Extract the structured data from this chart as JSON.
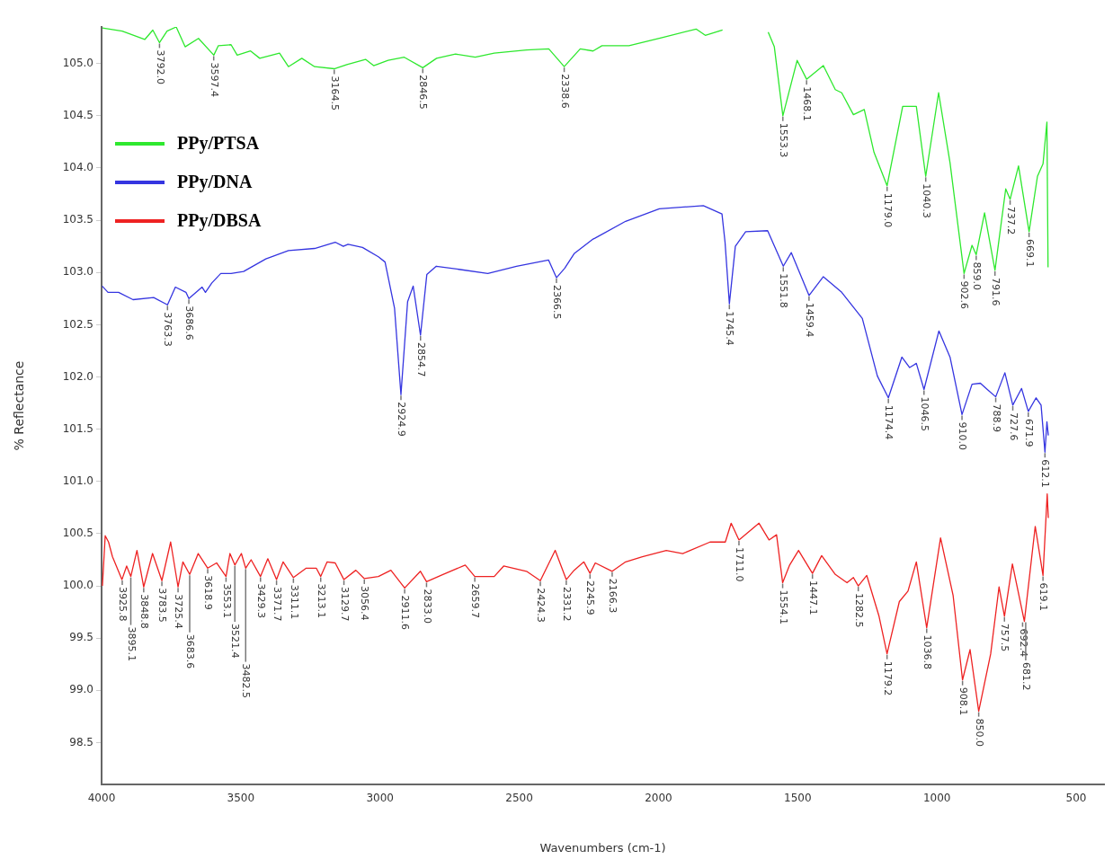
{
  "chart_data": {
    "type": "line",
    "xlabel": "Wavenumbers (cm-1)",
    "ylabel": "% Reflectance",
    "xlim": [
      4000,
      400
    ],
    "xticks": [
      4000,
      3500,
      3000,
      2500,
      2000,
      1500,
      1000,
      500
    ],
    "ylim": [
      98.1,
      105.35
    ],
    "yticks": [
      {
        "value": 98.5,
        "label": "98.5"
      },
      {
        "value": 99,
        "label": "99.0"
      },
      {
        "value": 99.5,
        "label": "99.5"
      },
      {
        "value": 100,
        "label": "100.0"
      },
      {
        "value": 100.5,
        "label": "100.5"
      },
      {
        "value": 101,
        "label": "101.0"
      },
      {
        "value": 101.5,
        "label": "101.5"
      },
      {
        "value": 102,
        "label": "102.0"
      },
      {
        "value": 102.5,
        "label": "102.5"
      },
      {
        "value": 103,
        "label": "103.0"
      },
      {
        "value": 103.5,
        "label": "103.5"
      },
      {
        "value": 104,
        "label": "104.0"
      },
      {
        "value": 104.5,
        "label": "104.5"
      },
      {
        "value": 105,
        "label": "105.0"
      }
    ],
    "grid": false,
    "legend": "top left",
    "marker": "none",
    "line_style": "solid",
    "series": [
      {
        "name": "PPy/PTSA",
        "color": "#2ee82e",
        "x": [
          3997,
          3926,
          3845,
          3816,
          3792,
          3765,
          3732,
          3700,
          3652,
          3597,
          3581,
          3535,
          3513,
          3465,
          3432,
          3361,
          3329,
          3281,
          3235,
          3164.5,
          3119,
          3052,
          3023,
          2971,
          2913,
          2846.5,
          2797,
          2729,
          2658,
          2590,
          2474,
          2394,
          2338.6,
          2281,
          2235,
          2203,
          2106,
          1984,
          1865,
          1832,
          1770,
          1690,
          1606,
          1584,
          1553.3,
          1502,
          1468.1,
          1408,
          1365,
          1342,
          1300,
          1261,
          1226,
          1179,
          1123,
          1074,
          1040.3,
          994,
          953,
          902.6,
          874,
          859,
          829,
          791.6,
          753,
          737.2,
          707,
          669.1,
          639,
          619,
          605,
          601
        ],
        "values": [
          105.34,
          105.31,
          105.23,
          105.32,
          105.2,
          105.31,
          105.35,
          105.16,
          105.24,
          105.08,
          105.17,
          105.18,
          105.08,
          105.12,
          105.05,
          105.1,
          104.97,
          105.05,
          104.97,
          104.95,
          104.99,
          105.04,
          104.98,
          105.03,
          105.06,
          104.96,
          105.05,
          105.09,
          105.06,
          105.1,
          105.13,
          105.14,
          104.97,
          105.14,
          105.12,
          105.17,
          105.17,
          105.25,
          105.33,
          105.27,
          105.32,
          null,
          105.3,
          105.16,
          104.5,
          105.03,
          104.85,
          104.98,
          104.75,
          104.72,
          104.51,
          104.56,
          104.15,
          103.83,
          104.59,
          104.59,
          103.92,
          104.72,
          104.05,
          102.99,
          103.26,
          103.17,
          103.57,
          103.02,
          103.8,
          103.7,
          104.02,
          103.39,
          103.92,
          104.04,
          104.44,
          103.05
        ]
      },
      {
        "name": "PPy/DNA",
        "color": "#3535e0",
        "x": [
          3998,
          3977,
          3939,
          3887,
          3813,
          3763.3,
          3735,
          3697,
          3686.6,
          3639,
          3627,
          3604,
          3572,
          3535,
          3490,
          3410,
          3329,
          3235,
          3161,
          3132,
          3115,
          3063,
          3006,
          2982,
          2948,
          2924.9,
          2901,
          2881,
          2854.7,
          2832,
          2798,
          2717,
          2613,
          2510,
          2395,
          2366.5,
          2337,
          2303,
          2235,
          2227,
          2118,
          1997,
          1839,
          1772,
          1761,
          1745.4,
          1724,
          1687,
          1608,
          1551.8,
          1523,
          1459.4,
          1408,
          1342,
          1268,
          1214,
          1174.4,
          1126,
          1098,
          1074,
          1046.5,
          993,
          953,
          910,
          874,
          844,
          819,
          788.9,
          756,
          727.6,
          696,
          671.9,
          644,
          626,
          612.1,
          605,
          600
        ],
        "values": [
          102.87,
          102.81,
          102.81,
          102.74,
          102.76,
          102.69,
          102.86,
          102.81,
          102.75,
          102.86,
          102.81,
          102.9,
          102.99,
          102.99,
          103.01,
          103.13,
          103.21,
          103.23,
          103.29,
          103.25,
          103.27,
          103.24,
          103.15,
          103.1,
          102.66,
          101.83,
          102.72,
          102.87,
          102.4,
          102.98,
          103.06,
          103.03,
          102.99,
          103.06,
          103.12,
          102.95,
          103.04,
          103.18,
          103.32,
          103.33,
          103.49,
          103.61,
          103.64,
          103.56,
          103.29,
          102.7,
          103.25,
          103.39,
          103.4,
          103.06,
          103.19,
          102.78,
          102.96,
          102.81,
          102.56,
          102.01,
          101.8,
          102.19,
          102.09,
          102.13,
          101.88,
          102.44,
          102.19,
          101.64,
          101.93,
          101.94,
          101.88,
          101.81,
          102.04,
          101.73,
          101.89,
          101.67,
          101.8,
          101.73,
          101.28,
          101.57,
          101.44
        ]
      },
      {
        "name": "PPy/DBSA",
        "color": "#ee2222",
        "x": [
          3997,
          3987,
          3975,
          3961,
          3927,
          3910,
          3895.1,
          3873,
          3848.8,
          3817,
          3783.5,
          3752,
          3725.4,
          3708,
          3683.6,
          3653,
          3618.9,
          3587,
          3553.1,
          3539,
          3521.4,
          3498,
          3482.5,
          3463,
          3429.3,
          3403,
          3371.7,
          3348,
          3311.1,
          3265,
          3229,
          3213.1,
          3190,
          3161,
          3129.7,
          3087,
          3056.4,
          3006,
          2961,
          2911.6,
          2855,
          2833,
          2774,
          2694,
          2659.7,
          2590,
          2556,
          2474,
          2424.3,
          2371,
          2331.2,
          2303,
          2268,
          2245.9,
          2227,
          2166.3,
          2118,
          2058,
          1972,
          1913,
          1815,
          1760,
          1739,
          1711,
          1639,
          1603,
          1576,
          1554.1,
          1529,
          1497,
          1447.1,
          1414,
          1365,
          1323,
          1300,
          1282.5,
          1252,
          1208,
          1179.2,
          1135,
          1104,
          1074,
          1036.8,
          987,
          942,
          908.1,
          881,
          850,
          807,
          777,
          757.5,
          729,
          686,
          647,
          619.1,
          604,
          600
        ],
        "values": [
          100,
          100.48,
          100.42,
          100.28,
          100.06,
          100.19,
          100.09,
          100.34,
          99.99,
          100.31,
          100.05,
          100.42,
          99.99,
          100.23,
          100.11,
          100.31,
          100.17,
          100.22,
          100.09,
          100.31,
          100.2,
          100.31,
          100.17,
          100.25,
          100.09,
          100.26,
          100.06,
          100.23,
          100.08,
          100.17,
          100.17,
          100.09,
          100.23,
          100.22,
          100.06,
          100.15,
          100.07,
          100.09,
          100.15,
          99.98,
          100.14,
          100.04,
          100.11,
          100.2,
          100.09,
          100.09,
          100.19,
          100.14,
          100.05,
          100.34,
          100.06,
          100.15,
          100.23,
          100.12,
          100.22,
          100.14,
          100.23,
          100.28,
          100.34,
          100.31,
          100.42,
          100.42,
          100.6,
          100.44,
          100.6,
          100.44,
          100.49,
          100.03,
          100.2,
          100.34,
          100.12,
          100.29,
          100.11,
          100.03,
          100.08,
          100,
          100.1,
          99.71,
          99.35,
          99.85,
          99.95,
          100.23,
          99.6,
          100.46,
          99.91,
          99.1,
          99.39,
          98.8,
          99.35,
          99.99,
          99.71,
          100.21,
          99.66,
          100.57,
          100.1,
          100.88,
          100.65
        ]
      }
    ],
    "annotations": [
      {
        "text": "3792.0",
        "x": 3792,
        "y": 105.2
      },
      {
        "text": "3597.4",
        "x": 3597.4,
        "y": 105.08
      },
      {
        "text": "3164.5",
        "x": 3164.5,
        "y": 104.95
      },
      {
        "text": "2846.5",
        "x": 2846.5,
        "y": 104.96
      },
      {
        "text": "2338.6",
        "x": 2338.6,
        "y": 104.97
      },
      {
        "text": "1553.3",
        "x": 1553.3,
        "y": 104.5
      },
      {
        "text": "1468.1",
        "x": 1468.1,
        "y": 104.85
      },
      {
        "text": "1179.0",
        "x": 1179,
        "y": 103.83
      },
      {
        "text": "1040.3",
        "x": 1040.3,
        "y": 103.92
      },
      {
        "text": "902.6",
        "x": 902.6,
        "y": 102.99
      },
      {
        "text": "859.0",
        "x": 859,
        "y": 103.17
      },
      {
        "text": "791.6",
        "x": 791.6,
        "y": 103.02
      },
      {
        "text": "737.2",
        "x": 737.2,
        "y": 103.7
      },
      {
        "text": "669.1",
        "x": 669.1,
        "y": 103.39
      },
      {
        "text": "3763.3",
        "x": 3763.3,
        "y": 102.69
      },
      {
        "text": "3686.6",
        "x": 3686.6,
        "y": 102.75
      },
      {
        "text": "2924.9",
        "x": 2924.9,
        "y": 101.83
      },
      {
        "text": "2854.7",
        "x": 2854.7,
        "y": 102.4
      },
      {
        "text": "2366.5",
        "x": 2366.5,
        "y": 102.95
      },
      {
        "text": "1745.4",
        "x": 1745.4,
        "y": 102.7
      },
      {
        "text": "1551.8",
        "x": 1551.8,
        "y": 103.06
      },
      {
        "text": "1459.4",
        "x": 1459.4,
        "y": 102.78
      },
      {
        "text": "1174.4",
        "x": 1174.4,
        "y": 101.8
      },
      {
        "text": "1046.5",
        "x": 1046.5,
        "y": 101.88
      },
      {
        "text": "910.0",
        "x": 910,
        "y": 101.64
      },
      {
        "text": "788.9",
        "x": 788.9,
        "y": 101.81
      },
      {
        "text": "727.6",
        "x": 727.6,
        "y": 101.73
      },
      {
        "text": "671.9",
        "x": 671.9,
        "y": 101.67
      },
      {
        "text": "612.1",
        "x": 612.1,
        "y": 101.28
      },
      {
        "text": "3925.8",
        "x": 3925.8,
        "y": 100.06
      },
      {
        "text": "3895.1",
        "x": 3895.1,
        "y": 100.09
      },
      {
        "text": "3848.8",
        "x": 3848.8,
        "y": 99.99
      },
      {
        "text": "3783.5",
        "x": 3783.5,
        "y": 100.05
      },
      {
        "text": "3725.4",
        "x": 3725.4,
        "y": 99.99
      },
      {
        "text": "3683.6",
        "x": 3683.6,
        "y": 100.11
      },
      {
        "text": "3618.9",
        "x": 3618.9,
        "y": 100.17
      },
      {
        "text": "3553.1",
        "x": 3553.1,
        "y": 100.09
      },
      {
        "text": "3521.4",
        "x": 3521.4,
        "y": 100.2
      },
      {
        "text": "3482.5",
        "x": 3482.5,
        "y": 100.17
      },
      {
        "text": "3429.3",
        "x": 3429.3,
        "y": 100.09
      },
      {
        "text": "3371.7",
        "x": 3371.7,
        "y": 100.06
      },
      {
        "text": "3311.1",
        "x": 3311.1,
        "y": 100.08
      },
      {
        "text": "3213.1",
        "x": 3213.1,
        "y": 100.09
      },
      {
        "text": "3129.7",
        "x": 3129.7,
        "y": 100.06
      },
      {
        "text": "3056.4",
        "x": 3056.4,
        "y": 100.07
      },
      {
        "text": "2911.6",
        "x": 2911.6,
        "y": 99.98
      },
      {
        "text": "2833.0",
        "x": 2833,
        "y": 100.04
      },
      {
        "text": "2659.7",
        "x": 2659.7,
        "y": 100.09
      },
      {
        "text": "2424.3",
        "x": 2424.3,
        "y": 100.05
      },
      {
        "text": "2331.2",
        "x": 2331.2,
        "y": 100.06
      },
      {
        "text": "2245.9",
        "x": 2245.9,
        "y": 100.12
      },
      {
        "text": "2166.3",
        "x": 2166.3,
        "y": 100.14
      },
      {
        "text": "1711.0",
        "x": 1711,
        "y": 100.44
      },
      {
        "text": "1554.1",
        "x": 1554.1,
        "y": 100.03
      },
      {
        "text": "1447.1",
        "x": 1447.1,
        "y": 100.12
      },
      {
        "text": "1282.5",
        "x": 1282.5,
        "y": 100
      },
      {
        "text": "1179.2",
        "x": 1179.2,
        "y": 99.35
      },
      {
        "text": "1036.8",
        "x": 1036.8,
        "y": 99.6
      },
      {
        "text": "908.1",
        "x": 908.1,
        "y": 99.1
      },
      {
        "text": "850.0",
        "x": 850,
        "y": 98.8
      },
      {
        "text": "757.5",
        "x": 757.5,
        "y": 99.71
      },
      {
        "text": "692.4",
        "x": 692.4,
        "y": 99.66
      },
      {
        "text": "681.2",
        "x": 681.2,
        "y": 99.66
      },
      {
        "text": "619.1",
        "x": 619.1,
        "y": 100.1
      }
    ]
  }
}
